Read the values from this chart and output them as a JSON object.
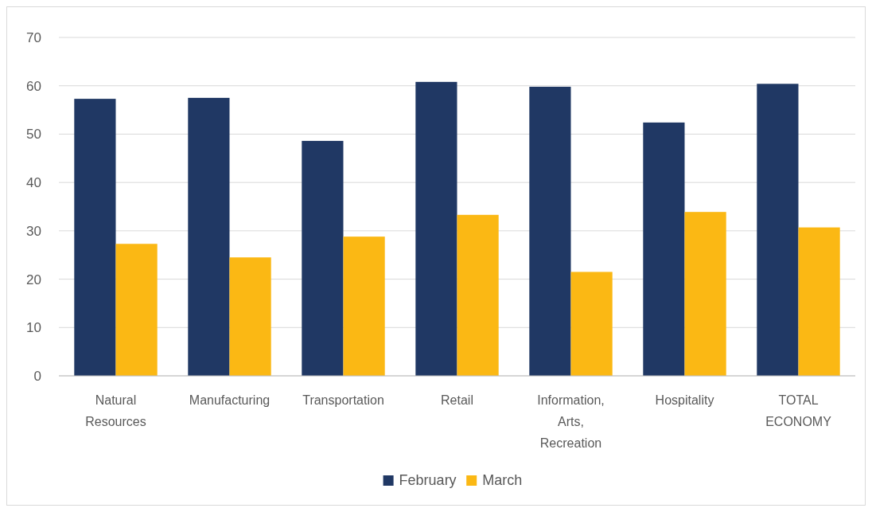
{
  "chart_data": {
    "type": "bar",
    "categories": [
      "Natural Resources",
      "Manufacturing",
      "Transportation",
      "Retail",
      "Information, Arts, Recreation",
      "Hospitality",
      "TOTAL ECONOMY"
    ],
    "series": [
      {
        "name": "February",
        "color": "#203864",
        "values": [
          57.3,
          57.5,
          48.6,
          60.8,
          59.8,
          52.4,
          60.4
        ]
      },
      {
        "name": "March",
        "color": "#fbb814",
        "values": [
          27.3,
          24.5,
          28.8,
          33.3,
          21.5,
          33.9,
          30.7
        ]
      }
    ],
    "ylim": [
      0,
      70
    ],
    "yticks": [
      0,
      10,
      20,
      30,
      40,
      50,
      60,
      70
    ],
    "grid": "y",
    "legend": "bottom"
  }
}
